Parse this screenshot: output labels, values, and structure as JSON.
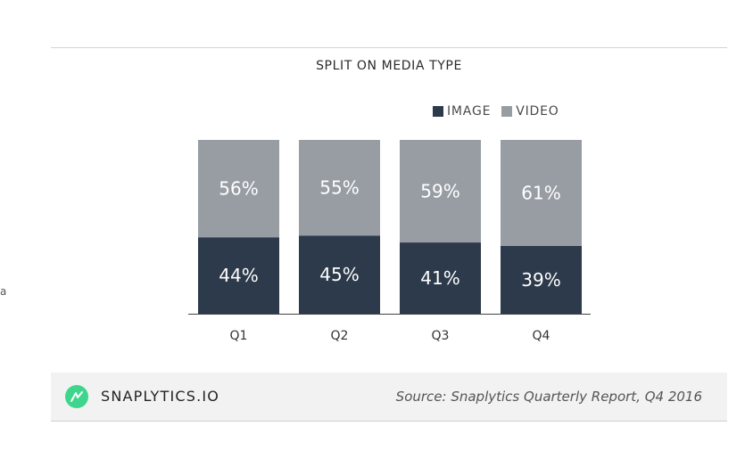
{
  "chart_data": {
    "type": "bar",
    "stacked": true,
    "title": "SPLIT ON MEDIA TYPE",
    "categories": [
      "Q1",
      "Q2",
      "Q3",
      "Q4"
    ],
    "series": [
      {
        "name": "IMAGE",
        "values": [
          44,
          45,
          41,
          39
        ],
        "labels": [
          "44%",
          "45%",
          "41%",
          "39%"
        ],
        "color": "#2d3a4b"
      },
      {
        "name": "VIDEO",
        "values": [
          56,
          55,
          59,
          61
        ],
        "labels": [
          "56%",
          "55%",
          "59%",
          "61%"
        ],
        "color": "#989da4"
      }
    ],
    "ylim": [
      0,
      100
    ],
    "unit": "%",
    "grid": false,
    "legend_position": "top-right"
  },
  "edge_mark": "a",
  "footer": {
    "brand": "SNAPLYTICS.IO",
    "logo_icon": "snaplytics-logo-icon",
    "logo_color": "#3dd68c",
    "source": "Source: Snaplytics Quarterly Report, Q4 2016"
  }
}
